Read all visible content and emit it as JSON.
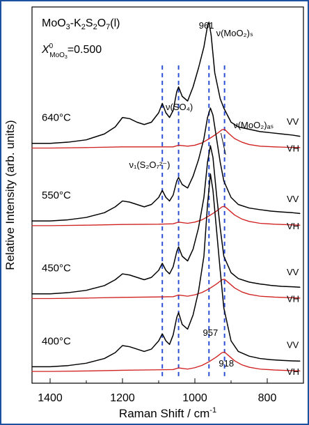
{
  "chart_data": {
    "type": "line",
    "title_lines": [
      "MoO3-K2S2O7 (l)",
      "X0MoO3 = 0.500"
    ],
    "xlabel": "Raman Shift / cm-1",
    "ylabel": "Relative Intensity (arb. units)",
    "xlim": [
      1450,
      700
    ],
    "ylim": [
      0,
      16
    ],
    "x_ticks": [
      1400,
      1200,
      1000,
      800
    ],
    "x_tick_labels": [
      "1400",
      "1200",
      "1000",
      "800"
    ],
    "annotations": {
      "nu1": "ν₁(S₂O₇²⁻)",
      "nuSO4": "ν(SO₄)",
      "nuMoO2s": "ν(MoO₂)ₛ",
      "nuMoO2as": "ν(MoO₂)ₐₛ",
      "peak961": "961",
      "peak957": "957",
      "peak918": "918"
    },
    "dashed_positions": [
      1090,
      1045,
      961,
      918
    ],
    "temperatures": [
      {
        "label": "640°C",
        "baseline": 10.2,
        "vv": "VV",
        "vh": "VH"
      },
      {
        "label": "550°C",
        "baseline": 6.9,
        "vv": "VV",
        "vh": "VH"
      },
      {
        "label": "450°C",
        "baseline": 3.8,
        "vv": "VV",
        "vh": "VH"
      },
      {
        "label": "400°C",
        "baseline": 0.7,
        "vv": "VV",
        "vh": "VH"
      }
    ],
    "series": [
      {
        "id": "640VV",
        "polarization": "VV",
        "color": "#000000",
        "x": [
          1450,
          1400,
          1350,
          1300,
          1250,
          1220,
          1200,
          1180,
          1160,
          1140,
          1120,
          1100,
          1090,
          1080,
          1070,
          1060,
          1050,
          1045,
          1035,
          1020,
          1005,
          990,
          975,
          965,
          961,
          955,
          945,
          930,
          920,
          900,
          880,
          850,
          820,
          790,
          760,
          730,
          710
        ],
        "y": [
          10.2,
          10.2,
          10.25,
          10.35,
          10.6,
          10.9,
          11.3,
          11.25,
          11.1,
          11.0,
          11.1,
          11.5,
          11.9,
          11.5,
          11.3,
          11.6,
          12.4,
          12.6,
          12.2,
          12.0,
          12.6,
          13.4,
          14.3,
          15.2,
          15.35,
          14.8,
          13.2,
          12.1,
          11.7,
          11.1,
          10.9,
          10.8,
          10.7,
          10.65,
          10.6,
          10.55,
          10.5
        ]
      },
      {
        "id": "640VH",
        "polarization": "VH",
        "color": "#d02020",
        "x": [
          1450,
          1400,
          1300,
          1200,
          1100,
          1060,
          1045,
          1020,
          1000,
          980,
          960,
          940,
          925,
          918,
          905,
          890,
          870,
          850,
          820,
          780,
          740,
          710
        ],
        "y": [
          10.0,
          10.0,
          10.02,
          10.05,
          10.05,
          10.05,
          10.12,
          10.08,
          10.12,
          10.22,
          10.4,
          10.6,
          10.78,
          10.8,
          10.6,
          10.4,
          10.25,
          10.15,
          10.08,
          10.05,
          10.03,
          10.02
        ]
      },
      {
        "id": "550VV",
        "polarization": "VV",
        "color": "#000000",
        "x": [
          1450,
          1400,
          1350,
          1300,
          1250,
          1220,
          1200,
          1180,
          1160,
          1140,
          1120,
          1100,
          1090,
          1080,
          1070,
          1060,
          1050,
          1045,
          1035,
          1020,
          1005,
          990,
          975,
          965,
          957,
          950,
          940,
          930,
          920,
          900,
          880,
          850,
          820,
          790,
          760,
          730,
          710
        ],
        "y": [
          6.9,
          6.9,
          6.95,
          7.05,
          7.25,
          7.5,
          7.75,
          7.7,
          7.6,
          7.5,
          7.6,
          7.9,
          8.2,
          7.9,
          7.75,
          8.0,
          8.6,
          8.75,
          8.45,
          8.3,
          8.8,
          9.5,
          10.4,
          11.3,
          11.7,
          11.4,
          10.4,
          9.4,
          8.6,
          7.9,
          7.6,
          7.45,
          7.38,
          7.32,
          7.28,
          7.25,
          7.22
        ]
      },
      {
        "id": "550VH",
        "polarization": "VH",
        "color": "#d02020",
        "x": [
          1450,
          1400,
          1300,
          1200,
          1100,
          1060,
          1045,
          1020,
          1000,
          980,
          960,
          940,
          925,
          918,
          905,
          890,
          870,
          850,
          820,
          780,
          740,
          710
        ],
        "y": [
          6.7,
          6.7,
          6.72,
          6.75,
          6.76,
          6.78,
          6.85,
          6.8,
          6.85,
          6.95,
          7.12,
          7.32,
          7.5,
          7.52,
          7.35,
          7.15,
          6.98,
          6.88,
          6.8,
          6.76,
          6.74,
          6.72
        ]
      },
      {
        "id": "450VV",
        "polarization": "VV",
        "color": "#000000",
        "x": [
          1450,
          1400,
          1350,
          1300,
          1250,
          1220,
          1200,
          1180,
          1160,
          1140,
          1120,
          1100,
          1090,
          1080,
          1070,
          1060,
          1050,
          1045,
          1035,
          1020,
          1005,
          990,
          975,
          965,
          957,
          950,
          940,
          930,
          920,
          900,
          880,
          850,
          820,
          790,
          760,
          730,
          710
        ],
        "y": [
          3.8,
          3.8,
          3.85,
          3.95,
          4.15,
          4.4,
          4.65,
          4.6,
          4.5,
          4.4,
          4.5,
          4.8,
          5.1,
          4.8,
          4.65,
          4.95,
          5.6,
          5.8,
          5.4,
          5.2,
          5.7,
          6.6,
          7.9,
          9.4,
          10.1,
          9.6,
          8.0,
          6.6,
          5.4,
          4.7,
          4.45,
          4.3,
          4.22,
          4.16,
          4.12,
          4.1,
          4.08
        ]
      },
      {
        "id": "450VH",
        "polarization": "VH",
        "color": "#d02020",
        "x": [
          1450,
          1400,
          1300,
          1200,
          1100,
          1060,
          1045,
          1020,
          1000,
          980,
          960,
          940,
          925,
          918,
          905,
          890,
          870,
          850,
          820,
          780,
          740,
          710
        ],
        "y": [
          3.6,
          3.6,
          3.62,
          3.65,
          3.67,
          3.68,
          3.75,
          3.7,
          3.76,
          3.86,
          4.02,
          4.22,
          4.4,
          4.42,
          4.25,
          4.05,
          3.88,
          3.78,
          3.7,
          3.66,
          3.64,
          3.62
        ]
      },
      {
        "id": "400VV",
        "polarization": "VV",
        "color": "#000000",
        "x": [
          1450,
          1400,
          1350,
          1300,
          1250,
          1220,
          1200,
          1180,
          1160,
          1140,
          1120,
          1100,
          1090,
          1080,
          1070,
          1060,
          1050,
          1045,
          1035,
          1020,
          1005,
          990,
          975,
          965,
          957,
          950,
          940,
          930,
          920,
          900,
          880,
          850,
          820,
          790,
          760,
          730,
          710
        ],
        "y": [
          0.7,
          0.7,
          0.75,
          0.85,
          1.05,
          1.3,
          1.6,
          1.55,
          1.45,
          1.35,
          1.45,
          1.8,
          2.1,
          1.8,
          1.65,
          2.05,
          2.8,
          3.0,
          2.5,
          2.3,
          2.9,
          3.9,
          5.4,
          7.6,
          8.9,
          8.2,
          6.5,
          4.8,
          3.2,
          1.8,
          1.35,
          1.15,
          1.05,
          1.0,
          0.97,
          0.95,
          0.94
        ]
      },
      {
        "id": "400VH",
        "polarization": "VH",
        "color": "#d02020",
        "x": [
          1450,
          1400,
          1300,
          1200,
          1100,
          1060,
          1045,
          1020,
          1000,
          980,
          960,
          940,
          925,
          918,
          905,
          890,
          870,
          850,
          820,
          780,
          740,
          710
        ],
        "y": [
          0.5,
          0.5,
          0.52,
          0.55,
          0.57,
          0.58,
          0.65,
          0.6,
          0.66,
          0.76,
          0.92,
          1.12,
          1.3,
          1.32,
          1.15,
          0.95,
          0.78,
          0.68,
          0.6,
          0.56,
          0.54,
          0.52
        ]
      }
    ]
  }
}
